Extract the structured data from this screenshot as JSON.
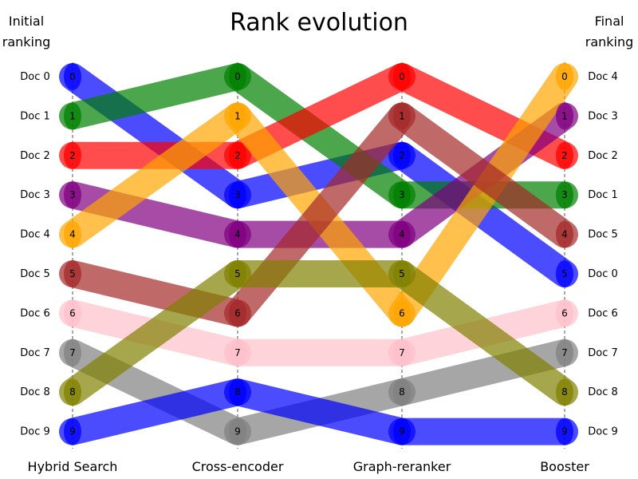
{
  "chart_data": {
    "type": "line",
    "chart_subtype": "bump",
    "title": "Rank evolution",
    "left_title": [
      "Initial",
      "ranking"
    ],
    "right_title": [
      "Final",
      "ranking"
    ],
    "stages": [
      "Hybrid Search",
      "Cross-encoder",
      "Graph-reranker",
      "Booster"
    ],
    "initial_ranking_labels": [
      "Doc 0",
      "Doc 1",
      "Doc 2",
      "Doc 3",
      "Doc 4",
      "Doc 5",
      "Doc 6",
      "Doc 7",
      "Doc 8",
      "Doc 9"
    ],
    "final_ranking_labels": [
      "Doc 4",
      "Doc 3",
      "Doc 2",
      "Doc 1",
      "Doc 5",
      "Doc 0",
      "Doc 6",
      "Doc 7",
      "Doc 8",
      "Doc 9"
    ],
    "rank_tick_labels": [
      "0",
      "1",
      "2",
      "3",
      "4",
      "5",
      "6",
      "7",
      "8",
      "9"
    ],
    "y_inverted": true,
    "grid": "dashed vertical lines at each stage",
    "series": [
      {
        "doc": "Doc 0",
        "color": "#0000ff",
        "ranks": [
          0,
          3,
          2,
          5
        ]
      },
      {
        "doc": "Doc 1",
        "color": "#008000",
        "ranks": [
          1,
          0,
          3,
          3
        ]
      },
      {
        "doc": "Doc 2",
        "color": "#ff0000",
        "ranks": [
          2,
          2,
          0,
          2
        ]
      },
      {
        "doc": "Doc 3",
        "color": "#800080",
        "ranks": [
          3,
          4,
          4,
          1
        ]
      },
      {
        "doc": "Doc 4",
        "color": "#ffa500",
        "ranks": [
          4,
          1,
          6,
          0
        ]
      },
      {
        "doc": "Doc 5",
        "color": "#a52a2a",
        "ranks": [
          5,
          6,
          1,
          4
        ]
      },
      {
        "doc": "Doc 6",
        "color": "#ffc0cb",
        "ranks": [
          6,
          7,
          7,
          6
        ]
      },
      {
        "doc": "Doc 7",
        "color": "#808080",
        "ranks": [
          7,
          9,
          8,
          7
        ]
      },
      {
        "doc": "Doc 8",
        "color": "#808000",
        "ranks": [
          8,
          5,
          5,
          8
        ]
      },
      {
        "doc": "Doc 9",
        "color": "#0000ff",
        "ranks": [
          9,
          8,
          9,
          9
        ]
      }
    ]
  }
}
